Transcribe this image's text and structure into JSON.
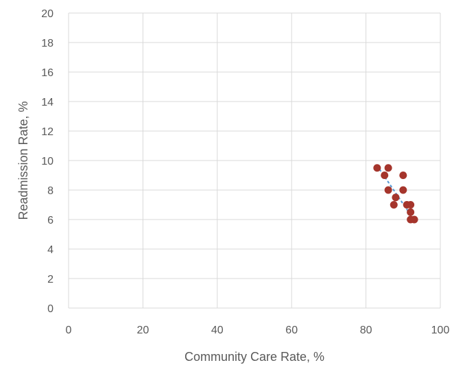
{
  "chart_data": {
    "type": "scatter",
    "title": "",
    "xlabel": "Community Care Rate, %",
    "ylabel": "Readmission Rate, %",
    "xlim": [
      0,
      100
    ],
    "ylim": [
      0,
      20
    ],
    "x_ticks": [
      "0",
      "20",
      "40",
      "60",
      "80",
      "100"
    ],
    "y_ticks": [
      "0",
      "2",
      "4",
      "6",
      "8",
      "10",
      "12",
      "14",
      "16",
      "18",
      "20"
    ],
    "grid": true,
    "legend": "none",
    "series": [
      {
        "points": [
          {
            "x": 83,
            "y": 9.5
          },
          {
            "x": 85,
            "y": 9.0
          },
          {
            "x": 86,
            "y": 9.5
          },
          {
            "x": 86,
            "y": 8.0
          },
          {
            "x": 87.5,
            "y": 7.0
          },
          {
            "x": 88,
            "y": 7.5
          },
          {
            "x": 90,
            "y": 9.0
          },
          {
            "x": 90,
            "y": 8.0
          },
          {
            "x": 91,
            "y": 7.0
          },
          {
            "x": 92,
            "y": 7.0
          },
          {
            "x": 92,
            "y": 6.5
          },
          {
            "x": 92,
            "y": 6.0
          },
          {
            "x": 93,
            "y": 6.0
          }
        ],
        "color": "#A5352C"
      }
    ],
    "trendline": {
      "style": "dotted",
      "color": "#5B9BD5",
      "x": [
        83,
        93
      ],
      "y": [
        9.65,
        5.95
      ]
    }
  }
}
